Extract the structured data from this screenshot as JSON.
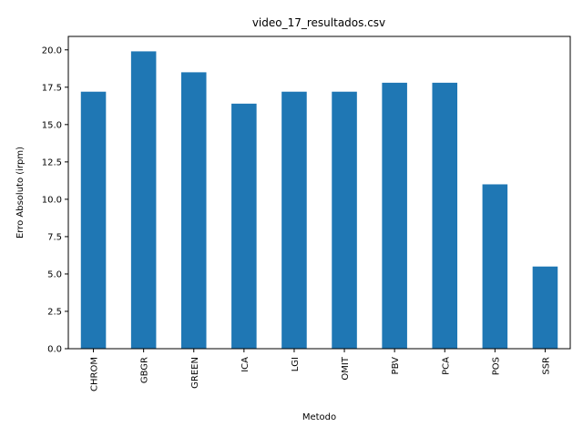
{
  "chart_data": {
    "type": "bar",
    "title": "video_17_resultados.csv",
    "xlabel": "Metodo",
    "ylabel": "Erro Absoluto (irpm)",
    "categories": [
      "CHROM",
      "GBGR",
      "GREEN",
      "ICA",
      "LGI",
      "OMIT",
      "PBV",
      "PCA",
      "POS",
      "SSR"
    ],
    "values": [
      17.2,
      19.9,
      18.5,
      16.4,
      17.2,
      17.2,
      17.8,
      17.8,
      11.0,
      5.5
    ],
    "ylim": [
      0,
      20.9
    ],
    "yticks": [
      "0.0",
      "2.5",
      "5.0",
      "7.5",
      "10.0",
      "12.5",
      "15.0",
      "17.5",
      "20.0"
    ],
    "bar_color": "#1f77b4",
    "grid": false,
    "legend": "none"
  }
}
